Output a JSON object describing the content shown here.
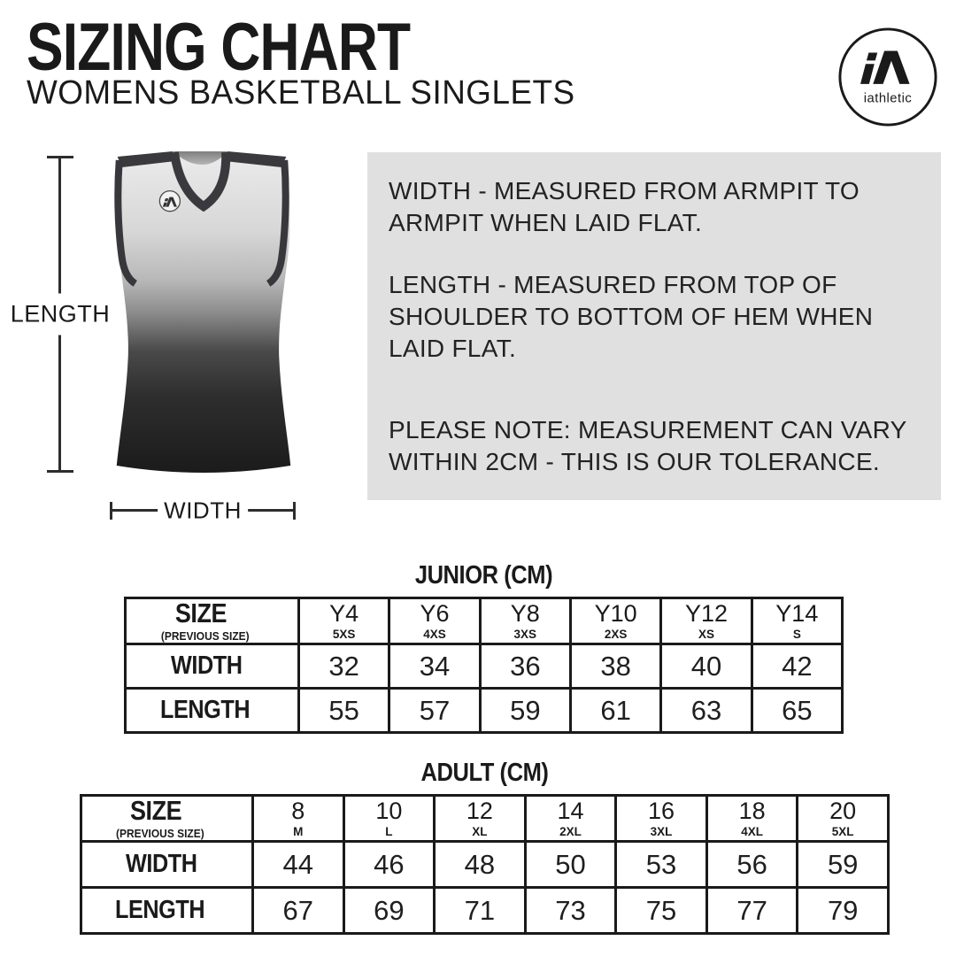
{
  "header": {
    "title": "SIZING CHART",
    "subtitle": "WOMENS BASKETBALL SINGLETS",
    "logo_mark": "iA",
    "logo_text": "iathletic"
  },
  "diagram": {
    "length_label": "LENGTH",
    "width_label": "WIDTH"
  },
  "notes": {
    "width_note": "WIDTH - MEASURED FROM ARMPIT TO ARMPIT WHEN LAID FLAT.",
    "length_note": "LENGTH - MEASURED FROM TOP OF SHOULDER TO BOTTOM OF HEM WHEN LAID FLAT.",
    "tolerance_note": "PLEASE NOTE: MEASUREMENT CAN VARY WITHIN 2CM - THIS IS OUR TOLERANCE."
  },
  "tables": {
    "junior": {
      "title": "JUNIOR (CM)",
      "size_header": "SIZE",
      "size_subheader": "(PREVIOUS SIZE)",
      "width_label": "WIDTH",
      "length_label": "LENGTH",
      "columns": [
        {
          "size": "Y4",
          "previous": "5XS"
        },
        {
          "size": "Y6",
          "previous": "4XS"
        },
        {
          "size": "Y8",
          "previous": "3XS"
        },
        {
          "size": "Y10",
          "previous": "2XS"
        },
        {
          "size": "Y12",
          "previous": "XS"
        },
        {
          "size": "Y14",
          "previous": "S"
        }
      ],
      "width_values": [
        "32",
        "34",
        "36",
        "38",
        "40",
        "42"
      ],
      "length_values": [
        "55",
        "57",
        "59",
        "61",
        "63",
        "65"
      ]
    },
    "adult": {
      "title": "ADULT (CM)",
      "size_header": "SIZE",
      "size_subheader": "(PREVIOUS SIZE)",
      "width_label": "WIDTH",
      "length_label": "LENGTH",
      "columns": [
        {
          "size": "8",
          "previous": "M"
        },
        {
          "size": "10",
          "previous": "L"
        },
        {
          "size": "12",
          "previous": "XL"
        },
        {
          "size": "14",
          "previous": "2XL"
        },
        {
          "size": "16",
          "previous": "3XL"
        },
        {
          "size": "18",
          "previous": "4XL"
        },
        {
          "size": "20",
          "previous": "5XL"
        }
      ],
      "width_values": [
        "44",
        "46",
        "48",
        "50",
        "53",
        "56",
        "59"
      ],
      "length_values": [
        "67",
        "69",
        "71",
        "73",
        "75",
        "77",
        "79"
      ]
    }
  },
  "chart_data": [
    {
      "type": "table",
      "title": "JUNIOR (CM)",
      "columns": [
        "SIZE (PREVIOUS SIZE)",
        "Y4 (5XS)",
        "Y6 (4XS)",
        "Y8 (3XS)",
        "Y10 (2XS)",
        "Y12 (XS)",
        "Y14 (S)"
      ],
      "rows": [
        [
          "WIDTH",
          32,
          34,
          36,
          38,
          40,
          42
        ],
        [
          "LENGTH",
          55,
          57,
          59,
          61,
          63,
          65
        ]
      ]
    },
    {
      "type": "table",
      "title": "ADULT (CM)",
      "columns": [
        "SIZE (PREVIOUS SIZE)",
        "8 (M)",
        "10 (L)",
        "12 (XL)",
        "14 (2XL)",
        "16 (3XL)",
        "18 (4XL)",
        "20 (5XL)"
      ],
      "rows": [
        [
          "WIDTH",
          44,
          46,
          48,
          50,
          53,
          56,
          59
        ],
        [
          "LENGTH",
          67,
          69,
          71,
          73,
          75,
          77,
          79
        ]
      ]
    }
  ],
  "colors": {
    "ink": "#1a1a1a",
    "panel_gray": "#e0e0e0",
    "trim_dark": "#3a3a3e"
  }
}
